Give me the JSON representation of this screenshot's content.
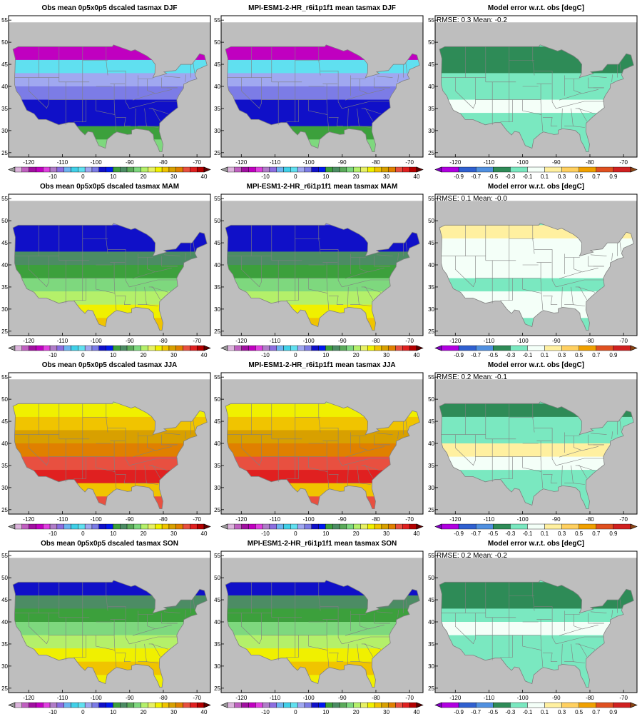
{
  "lat_ticks": [
    "25",
    "30",
    "35",
    "40",
    "45",
    "50",
    "55"
  ],
  "lon_ticks": [
    "-120",
    "-110",
    "-100",
    "-90",
    "-80",
    "-70"
  ],
  "abs_scale": {
    "labels": [
      "-10",
      "0",
      "10",
      "20",
      "30",
      "40"
    ],
    "colors": [
      "#9a9a9a",
      "#dcb4dc",
      "#c060c0",
      "#a010a0",
      "#c000c0",
      "#e040e0",
      "#b07cc8",
      "#8c6ee0",
      "#6cb4f0",
      "#40d0e8",
      "#60e0f0",
      "#a0a8f0",
      "#7c7ce6",
      "#1010c8",
      "#0018f0",
      "#3ca03c",
      "#4c8c64",
      "#5aaa5a",
      "#7ed87e",
      "#b4f06a",
      "#e6f064",
      "#f0f000",
      "#f0c400",
      "#d8a000",
      "#e08000",
      "#e85040",
      "#e02020",
      "#b40000",
      "#600000"
    ]
  },
  "err_scale": {
    "labels": [
      "-0.9",
      "-0.7",
      "-0.5",
      "-0.3",
      "-0.1",
      "0.1",
      "0.3",
      "0.5",
      "0.7",
      "0.9"
    ],
    "colors": [
      "#8000c0",
      "#b000e0",
      "#3060d0",
      "#5090e0",
      "#2e8b57",
      "#7ae8c0",
      "#f4fff8",
      "#fff0a0",
      "#ffd060",
      "#f0a000",
      "#e05020",
      "#d02020",
      "#8b4513"
    ]
  },
  "rows": [
    {
      "season": "DJF",
      "obs_title": "Obs mean 0p5x0p5 dscaled tasmax DJF",
      "model_title": "MPI-ESM1-2-HR_r6i1p1f1 mean tasmax DJF",
      "err_title": "Model error w.r.t. obs [degC]",
      "rmse_label": "RMSE: 0.3  Mean: -0.2",
      "obs_colors": [
        "#c000c0",
        "#c000c0",
        "#60e0f0",
        "#a0a8f0",
        "#7c7ce6",
        "#1010c8",
        "#1010c8",
        "#3ca03c",
        "#7ed87e"
      ],
      "model_colors": [
        "#c000c0",
        "#c000c0",
        "#60e0f0",
        "#a0a8f0",
        "#7c7ce6",
        "#1010c8",
        "#1010c8",
        "#3ca03c",
        "#7ed87e"
      ],
      "err_colors": [
        "#7ae8c0",
        "#2e8b57",
        "#2e8b57",
        "#7ae8c0",
        "#7ae8c0",
        "#f4fff8",
        "#7ae8c0",
        "#7ae8c0",
        "#7ae8c0"
      ]
    },
    {
      "season": "MAM",
      "obs_title": "Obs mean 0p5x0p5 dscaled tasmax MAM",
      "model_title": "MPI-ESM1-2-HR_r6i1p1f1 mean tasmax MAM",
      "err_title": "Model error w.r.t. obs [degC]",
      "rmse_label": "RMSE: 0.1  Mean: -0.0",
      "obs_colors": [
        "#7c7ce6",
        "#1010c8",
        "#1010c8",
        "#4c8c64",
        "#3ca03c",
        "#7ed87e",
        "#b4f06a",
        "#f0f000",
        "#f0c400"
      ],
      "model_colors": [
        "#7c7ce6",
        "#1010c8",
        "#1010c8",
        "#4c8c64",
        "#3ca03c",
        "#7ed87e",
        "#b4f06a",
        "#f0f000",
        "#f0c400"
      ],
      "err_colors": [
        "#7ae8c0",
        "#fff0a0",
        "#f4fff8",
        "#f4fff8",
        "#f4fff8",
        "#7ae8c0",
        "#f4fff8",
        "#f4fff8",
        "#7ae8c0"
      ]
    },
    {
      "season": "JJA",
      "obs_title": "Obs mean 0p5x0p5 dscaled tasmax JJA",
      "model_title": "MPI-ESM1-2-HR_r6i1p1f1 mean tasmax JJA",
      "err_title": "Model error w.r.t. obs [degC]",
      "rmse_label": "RMSE: 0.2  Mean: -0.1",
      "obs_colors": [
        "#b4f06a",
        "#f0f000",
        "#f0c400",
        "#d8a000",
        "#e08000",
        "#e85040",
        "#e02020",
        "#f0c400",
        "#e85040"
      ],
      "model_colors": [
        "#b4f06a",
        "#f0f000",
        "#f0c400",
        "#d8a000",
        "#e08000",
        "#e85040",
        "#e02020",
        "#f0c400",
        "#e85040"
      ],
      "err_colors": [
        "#7ae8c0",
        "#2e8b57",
        "#7ae8c0",
        "#7ae8c0",
        "#fff0a0",
        "#f4fff8",
        "#7ae8c0",
        "#7ae8c0",
        "#7ae8c0"
      ]
    },
    {
      "season": "SON",
      "obs_title": "Obs mean 0p5x0p5 dscaled tasmax SON",
      "model_title": "MPI-ESM1-2-HR_r6i1p1f1 mean tasmax SON",
      "err_title": "Model error w.r.t. obs [degC]",
      "rmse_label": "RMSE: 0.2  Mean: -0.2",
      "obs_colors": [
        "#1010c8",
        "#1010c8",
        "#4c8c64",
        "#3ca03c",
        "#7ed87e",
        "#b4f06a",
        "#f0f000",
        "#f0c400",
        "#f0f000"
      ],
      "model_colors": [
        "#1010c8",
        "#1010c8",
        "#4c8c64",
        "#3ca03c",
        "#7ed87e",
        "#b4f06a",
        "#f0f000",
        "#f0c400",
        "#f0f000"
      ],
      "err_colors": [
        "#7ae8c0",
        "#2e8b57",
        "#2e8b57",
        "#7ae8c0",
        "#f4fff8",
        "#7ae8c0",
        "#7ae8c0",
        "#7ae8c0",
        "#7ae8c0"
      ]
    }
  ],
  "colors": {
    "background": "#bebebe",
    "state_lines": "#808080",
    "frame": "#000000"
  }
}
